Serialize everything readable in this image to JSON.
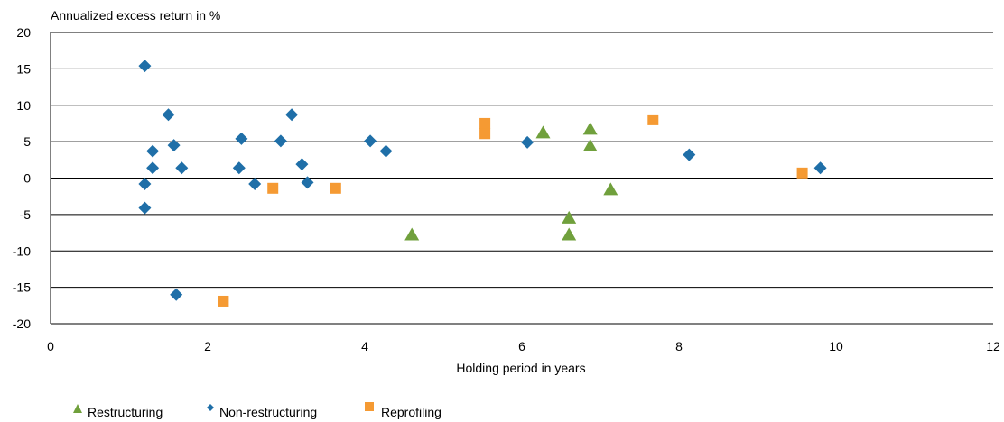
{
  "chart_data": {
    "type": "scatter",
    "title": "",
    "ylabel": "Annualized excess return in %",
    "xlabel": "Holding period in years",
    "xlim": [
      0,
      12
    ],
    "ylim": [
      -20,
      20
    ],
    "x_ticks": [
      0,
      2,
      4,
      6,
      8,
      10,
      12
    ],
    "y_ticks": [
      20,
      15,
      10,
      5,
      0,
      -5,
      -10,
      -15,
      -20
    ],
    "grid": "horizontal",
    "legend_position": "bottom-left",
    "series": [
      {
        "name": "Restructuring",
        "marker": "triangle",
        "color": "#70a03c",
        "points": [
          [
            4.6,
            -7.8
          ],
          [
            6.27,
            6.2
          ],
          [
            6.6,
            -5.5
          ],
          [
            6.6,
            -7.8
          ],
          [
            6.87,
            6.7
          ],
          [
            6.87,
            4.4
          ],
          [
            7.13,
            -1.6
          ]
        ]
      },
      {
        "name": "Non-restructuring",
        "marker": "diamond",
        "color": "#1f6fa8",
        "points": [
          [
            1.2,
            15.4
          ],
          [
            1.2,
            -0.8
          ],
          [
            1.2,
            -4.1
          ],
          [
            1.3,
            3.7
          ],
          [
            1.3,
            1.4
          ],
          [
            1.5,
            8.7
          ],
          [
            1.57,
            4.5
          ],
          [
            1.6,
            -16.0
          ],
          [
            1.67,
            1.4
          ],
          [
            2.4,
            1.4
          ],
          [
            2.43,
            5.4
          ],
          [
            2.6,
            -0.8
          ],
          [
            2.93,
            5.1
          ],
          [
            3.07,
            8.7
          ],
          [
            3.2,
            1.9
          ],
          [
            3.27,
            -0.6
          ],
          [
            4.07,
            5.1
          ],
          [
            4.27,
            3.7
          ],
          [
            6.07,
            4.9
          ],
          [
            8.13,
            3.2
          ],
          [
            9.8,
            1.4
          ]
        ]
      },
      {
        "name": "Reprofiling",
        "marker": "square",
        "color": "#f59a33",
        "points": [
          [
            2.2,
            -16.9
          ],
          [
            2.83,
            -1.4
          ],
          [
            3.63,
            -1.4
          ],
          [
            5.53,
            7.5
          ],
          [
            5.53,
            6.1
          ],
          [
            7.67,
            8.0
          ],
          [
            9.57,
            0.7
          ]
        ]
      }
    ]
  }
}
